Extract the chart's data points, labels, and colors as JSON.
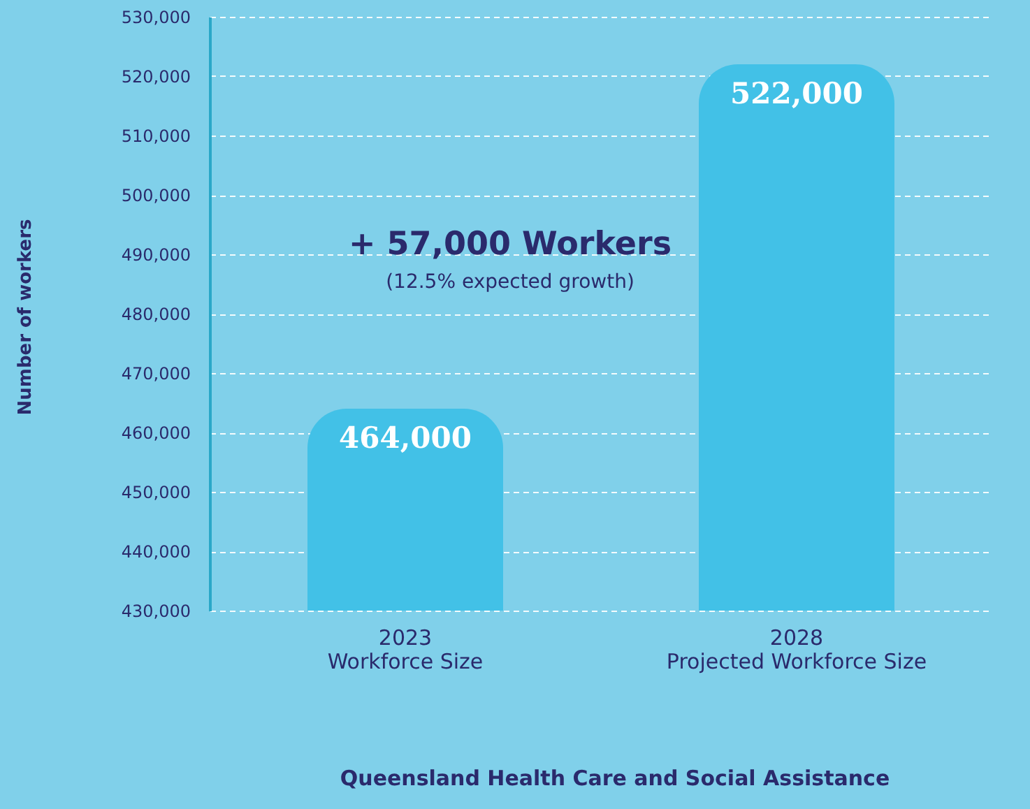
{
  "chart_data": {
    "type": "bar",
    "categories": [
      "2023\nWorkforce Size",
      "2028\nProjected Workforce Size"
    ],
    "values": [
      464000,
      522000
    ],
    "color": "#42c1e7",
    "value_labels": [
      "464,000",
      "522,000"
    ],
    "ylabel": "Number of workers",
    "xlabel": "Queensland Health Care and Social Assistance",
    "ylim": [
      430000,
      530000
    ],
    "yticks": [
      {
        "value": 430000,
        "label": "430,000"
      },
      {
        "value": 440000,
        "label": "440,000"
      },
      {
        "value": 450000,
        "label": "450,000"
      },
      {
        "value": 460000,
        "label": "460,000"
      },
      {
        "value": 470000,
        "label": "470,000"
      },
      {
        "value": 480000,
        "label": "480,000"
      },
      {
        "value": 490000,
        "label": "490,000"
      },
      {
        "value": 500000,
        "label": "500,000"
      },
      {
        "value": 510000,
        "label": "510,000"
      },
      {
        "value": 520000,
        "label": "520,000"
      },
      {
        "value": 530000,
        "label": "530,000"
      }
    ],
    "grid": "y",
    "annotations": [
      "+ 57,000 Workers",
      "(12.5% expected growth)"
    ]
  }
}
